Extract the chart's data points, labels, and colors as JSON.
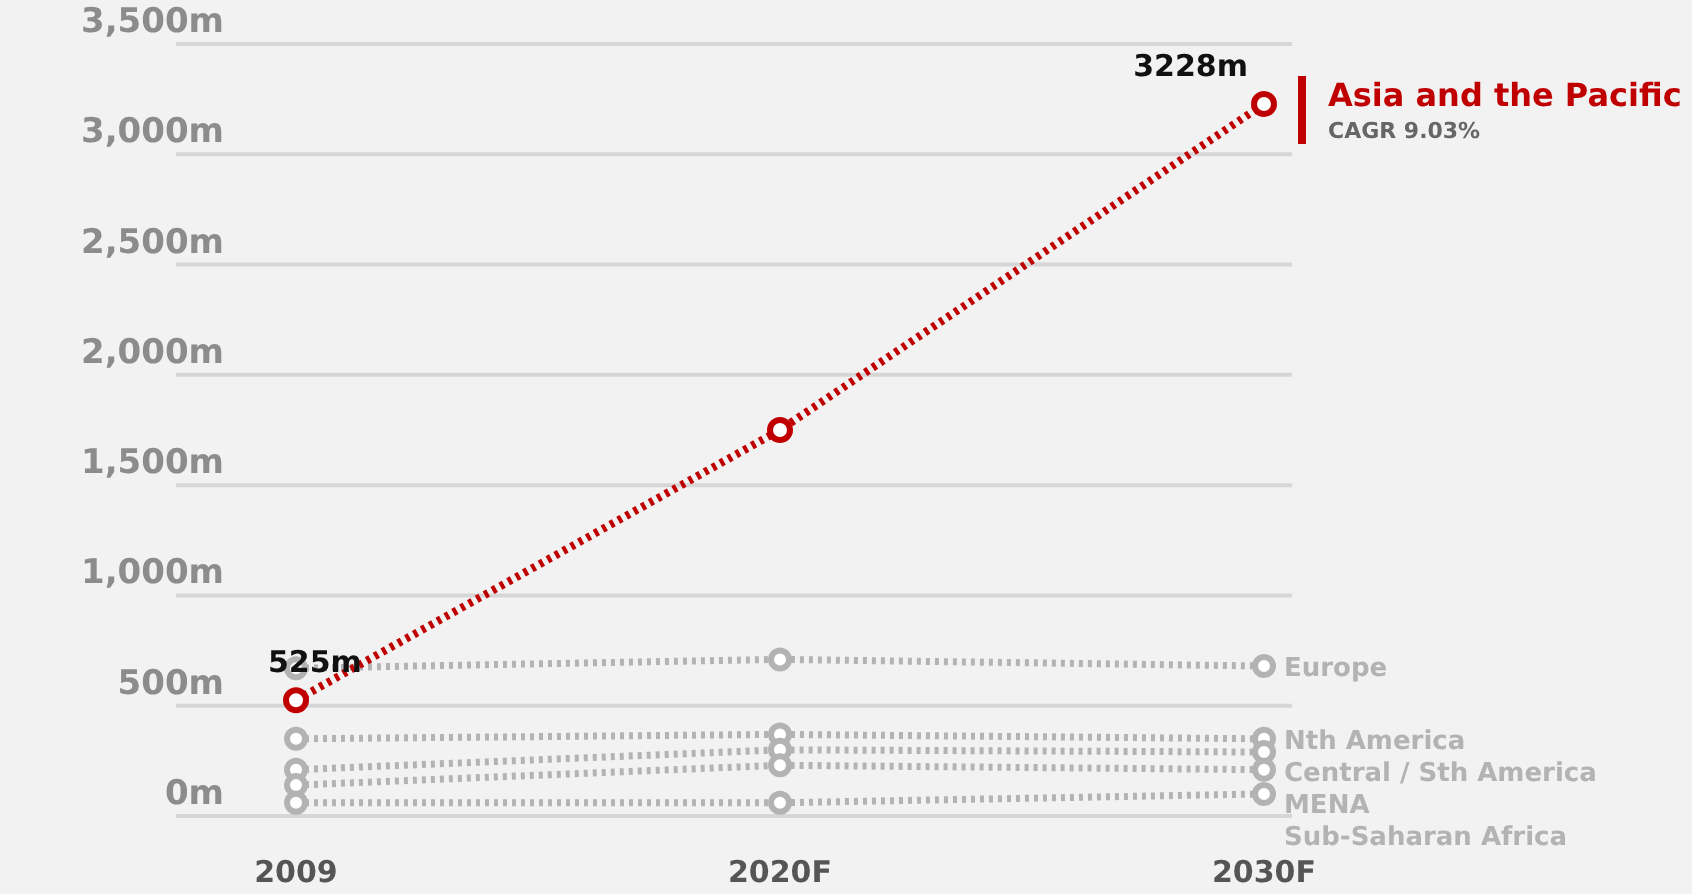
{
  "chart_data": {
    "type": "line",
    "categories": [
      "2009",
      "2020F",
      "2030F"
    ],
    "series": [
      {
        "name": "Europe",
        "color": "#b3b3b3",
        "values": [
          670,
          710,
          680
        ]
      },
      {
        "name": "Nth America",
        "color": "#b3b3b3",
        "values": [
          350,
          370,
          350
        ]
      },
      {
        "name": "Central / Sth America",
        "color": "#b3b3b3",
        "values": [
          210,
          300,
          290
        ]
      },
      {
        "name": "MENA",
        "color": "#b3b3b3",
        "values": [
          140,
          230,
          210
        ]
      },
      {
        "name": "Sub-Saharan Africa",
        "color": "#b3b3b3",
        "values": [
          60,
          60,
          100
        ]
      },
      {
        "name": "Asia and the Pacific",
        "color": "#c00000",
        "values": [
          525,
          1750,
          3228
        ],
        "value_labels": [
          "525m",
          null,
          "3228m"
        ]
      }
    ],
    "ylim": [
      0,
      3500
    ],
    "yticks": [
      {
        "value": 0,
        "label": "0m"
      },
      {
        "value": 500,
        "label": "500m"
      },
      {
        "value": 1000,
        "label": "1,000m"
      },
      {
        "value": 1500,
        "label": "1,500m"
      },
      {
        "value": 2000,
        "label": "2,000m"
      },
      {
        "value": 2500,
        "label": "2,500m"
      },
      {
        "value": 3000,
        "label": "3,000m"
      },
      {
        "value": 3500,
        "label": "3,500m"
      }
    ],
    "grid": "y",
    "legend": "top right",
    "marker": "circle",
    "line_style": "dotted",
    "annotations": [
      "CAGR 9.03%"
    ]
  }
}
